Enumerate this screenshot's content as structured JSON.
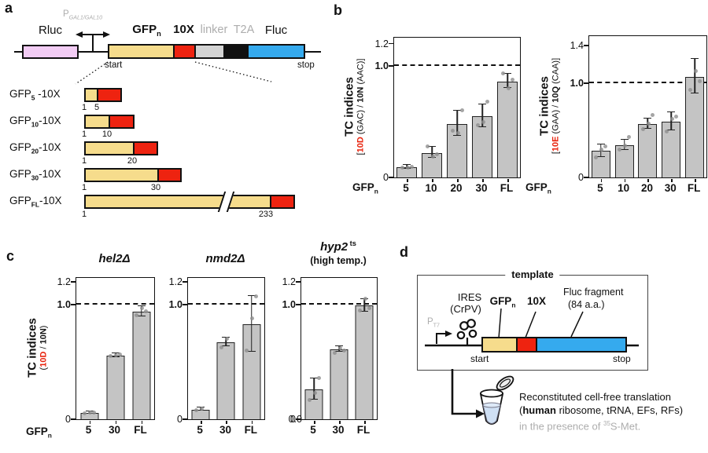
{
  "colors": {
    "tan": "#f6dc8c",
    "red": "#ee2310",
    "blue": "#35aaee",
    "pink": "#f2ccf4",
    "linker_gray": "#d3d3d3",
    "black": "#111111",
    "bar_gray": "#c4c4c4",
    "accent_red_text": "#e8220c",
    "muted_gray_text": "#adadad"
  },
  "panel_letters": {
    "a": "a",
    "b": "b",
    "c": "c",
    "d": "d"
  },
  "labels": {
    "gfpn": [
      {
        "t": "GFP",
        "b": 1
      },
      {
        "t": "n",
        "b": 1,
        "sub": 1
      }
    ]
  },
  "panel_a": {
    "promoter": [
      {
        "t": "P",
        "g": 1
      },
      {
        "t": "GAL1/GAL10",
        "g": 1,
        "i": 1,
        "sub": 1
      }
    ],
    "rluc": "Rluc",
    "gfp": [
      {
        "t": "GFP",
        "b": 1
      },
      {
        "t": "n",
        "b": 1,
        "sub": 1
      }
    ],
    "tenx": "10X",
    "linker": "linker",
    "t2a": "T2A",
    "fluc": "Fluc",
    "start": "start",
    "stop": "stop",
    "constructs": [
      {
        "label": [
          {
            "t": "GFP"
          },
          {
            "t": "5",
            "b": 1,
            "sub": 1
          },
          {
            "t": " -10X"
          }
        ],
        "n1": "1",
        "n2": "5"
      },
      {
        "label": [
          {
            "t": "GFP"
          },
          {
            "t": "10",
            "b": 1,
            "sub": 1
          },
          {
            "t": "-10X"
          }
        ],
        "n1": "1",
        "n2": "10"
      },
      {
        "label": [
          {
            "t": "GFP"
          },
          {
            "t": "20",
            "b": 1,
            "sub": 1
          },
          {
            "t": "-10X"
          }
        ],
        "n1": "1",
        "n2": "20"
      },
      {
        "label": [
          {
            "t": "GFP"
          },
          {
            "t": "30",
            "b": 1,
            "sub": 1
          },
          {
            "t": "-10X"
          }
        ],
        "n1": "1",
        "n2": "30"
      },
      {
        "label": [
          {
            "t": "GFP"
          },
          {
            "t": "FL",
            "b": 1,
            "sub": 1
          },
          {
            "t": "-10X"
          }
        ],
        "n1": "1",
        "n2": "233"
      }
    ]
  },
  "chart_data": [
    {
      "type": "bar",
      "name": "TC index 10D/10N (wild type)",
      "ylabel": "TC indices",
      "ylabel_sub": [
        {
          "t": "["
        },
        {
          "t": "10D",
          "r": 1,
          "b": 1
        },
        {
          "t": " (GAC) / "
        },
        {
          "t": "10N",
          "b": 1
        },
        {
          "t": " (AAC)]"
        }
      ],
      "yticks": [
        {
          "v": 0,
          "label": "0"
        },
        {
          "v": 1.0,
          "label": "1.0",
          "b": 1
        },
        {
          "v": 1.2,
          "label": "1.2",
          "g": 1
        }
      ],
      "dashed_at": 1.0,
      "ylim": [
        0,
        1.25
      ],
      "categories": [
        "5",
        "10",
        "20",
        "30",
        "FL"
      ],
      "values": [
        0.09,
        0.22,
        0.48,
        0.55,
        0.86
      ],
      "errors": [
        0.015,
        0.045,
        0.11,
        0.1,
        0.06
      ],
      "dots": [
        [
          0.085,
          0.09,
          0.095
        ],
        [
          0.28,
          0.19,
          0.21
        ],
        [
          0.42,
          0.4,
          0.6
        ],
        [
          0.47,
          0.5,
          0.68
        ],
        [
          0.93,
          0.8,
          0.88
        ]
      ]
    },
    {
      "type": "bar",
      "name": "TC index 10E/10Q (wild type)",
      "ylabel": "TC indices",
      "ylabel_sub": [
        {
          "t": "["
        },
        {
          "t": "10E",
          "r": 1,
          "b": 1
        },
        {
          "t": " (GAA) / "
        },
        {
          "t": "10Q",
          "b": 1
        },
        {
          "t": " (CAA)]"
        }
      ],
      "yticks": [
        {
          "v": 0,
          "label": "0"
        },
        {
          "v": 1.0,
          "label": "1.0",
          "b": 1
        },
        {
          "v": 1.4,
          "label": "1.4",
          "g": 1
        }
      ],
      "dashed_at": 1.0,
      "ylim": [
        0,
        1.5
      ],
      "categories": [
        "5",
        "10",
        "20",
        "30",
        "FL"
      ],
      "values": [
        0.28,
        0.34,
        0.57,
        0.59,
        1.07
      ],
      "errors": [
        0.06,
        0.05,
        0.05,
        0.09,
        0.18
      ],
      "dots": [
        [
          0.21,
          0.3,
          0.33
        ],
        [
          0.3,
          0.34,
          0.43
        ],
        [
          0.51,
          0.57,
          0.66
        ],
        [
          0.49,
          0.62,
          0.65
        ],
        [
          0.93,
          1.13,
          1.02
        ]
      ]
    },
    {
      "type": "bar",
      "name": "TC index 10D/10N in hel2 delta",
      "title": [
        {
          "t": "hel2Δ",
          "b": 1,
          "i": 1
        }
      ],
      "ylabel": "TC indices",
      "ylabel_sub": [
        {
          "t": "("
        },
        {
          "t": "10D",
          "r": 1,
          "b": 1
        },
        {
          "t": " / "
        },
        {
          "t": "10N",
          "b": 1
        },
        {
          "t": ")"
        }
      ],
      "yticks": [
        {
          "v": 0,
          "label": "0"
        },
        {
          "v": 1.0,
          "label": "1.0",
          "b": 1
        },
        {
          "v": 1.2,
          "label": "1.2",
          "g": 1
        }
      ],
      "dashed_at": 1.0,
      "ylim": [
        0,
        1.23
      ],
      "categories": [
        "5",
        "30",
        "FL"
      ],
      "values": [
        0.055,
        0.555,
        0.94
      ],
      "errors": [
        0.01,
        0.012,
        0.04
      ],
      "dots": [
        [
          0.05,
          0.055,
          0.06
        ],
        [
          0.55,
          0.56,
          0.565
        ],
        [
          0.91,
          0.97,
          0.94
        ]
      ]
    },
    {
      "type": "bar",
      "name": "TC index 10D/10N in nmd2 delta",
      "title": [
        {
          "t": "nmd2Δ",
          "b": 1,
          "i": 1
        }
      ],
      "yticks": [
        {
          "v": 0,
          "label": "0"
        },
        {
          "v": 1.0,
          "label": "1.0",
          "b": 1
        },
        {
          "v": 1.2,
          "label": "1.2",
          "g": 1
        }
      ],
      "dashed_at": 1.0,
      "ylim": [
        0,
        1.23
      ],
      "categories": [
        "5",
        "30",
        "FL"
      ],
      "values": [
        0.085,
        0.67,
        0.83
      ],
      "errors": [
        0.008,
        0.035,
        0.24
      ],
      "dots": [
        [
          0.08,
          0.09
        ],
        [
          0.63,
          0.7
        ],
        [
          0.6,
          0.88,
          1.07
        ]
      ]
    },
    {
      "type": "bar",
      "name": "TC index 10D/10N in hyp2-ts high temp",
      "title": [
        {
          "t": "hyp2",
          "b": 1,
          "i": 1
        },
        {
          "t": " ts",
          "b": 1,
          "sup": 1
        }
      ],
      "subtitle": "(high temp.)",
      "yticks": [
        {
          "v": 0,
          "label": "0.0",
          "g": 1,
          "dx": 8
        },
        {
          "v": 0,
          "label": "0"
        },
        {
          "v": 1.0,
          "label": "1.0",
          "b": 1
        },
        {
          "v": 1.2,
          "label": "1.2",
          "g": 1
        }
      ],
      "dashed_at": 1.0,
      "ylim": [
        0,
        1.23
      ],
      "categories": [
        "5",
        "30",
        "FL"
      ],
      "values": [
        0.26,
        0.61,
        0.99
      ],
      "errors": [
        0.09,
        0.02,
        0.05
      ],
      "dots": [
        [
          0.17,
          0.23,
          0.36
        ],
        [
          0.58,
          0.62,
          0.6
        ],
        [
          0.95,
          1.05,
          0.97
        ]
      ]
    }
  ],
  "panel_d": {
    "template": "template",
    "pt7": [
      {
        "t": "P",
        "g": 1
      },
      {
        "t": "T7",
        "g": 1,
        "sub": 1
      }
    ],
    "ires1": "IRES",
    "ires2": "(CrPV)",
    "gfp": [
      {
        "t": "GFP",
        "b": 1
      },
      {
        "t": "n",
        "b": 1,
        "sub": 1
      }
    ],
    "tenx": "10X",
    "fluc1": "Fluc fragment",
    "fluc2": "(84 a.a.)",
    "start": "start",
    "stop": "stop",
    "line1": "Reconstituted cell-free translation",
    "line2": [
      {
        "t": "("
      },
      {
        "t": "human",
        "b": 1
      },
      {
        "t": " ribosome, tRNA, EFs, RFs)"
      }
    ],
    "line3": [
      {
        "t": "in the presence of ",
        "g": 1
      },
      {
        "t": "35",
        "g": 1,
        "sup": 1
      },
      {
        "t": "S-Met.",
        "g": 1
      }
    ]
  }
}
